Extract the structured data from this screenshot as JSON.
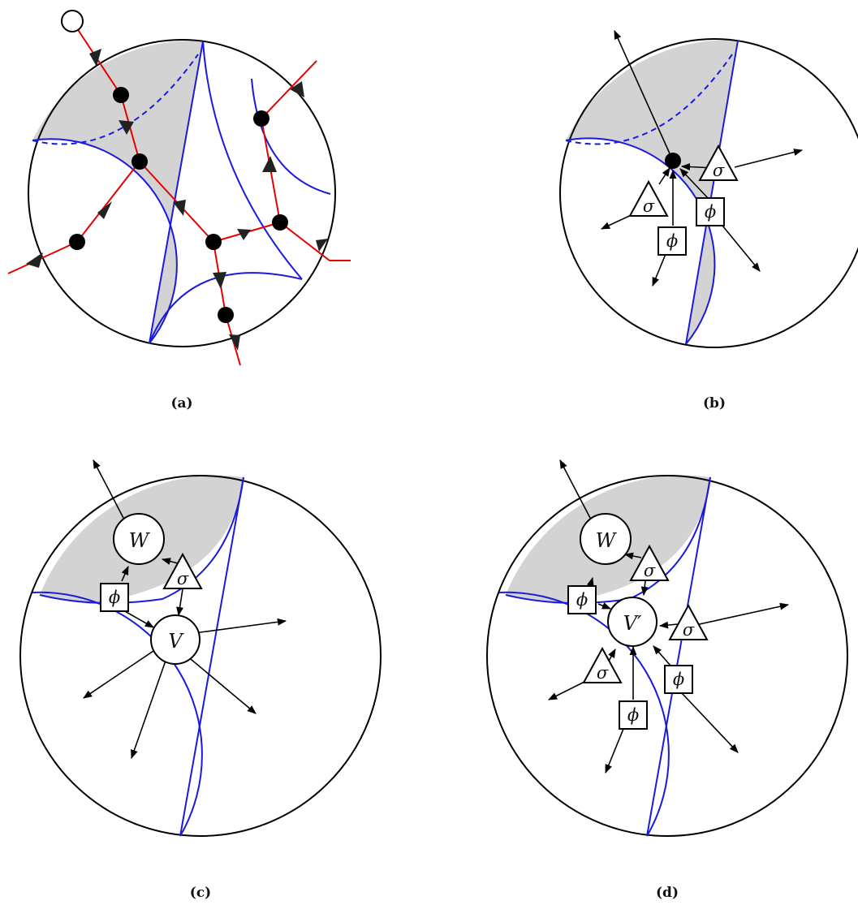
{
  "panels": [
    {
      "id": "a",
      "caption": "(a)"
    },
    {
      "id": "b",
      "caption": "(b)",
      "labels": {
        "sigma1": "σ",
        "sigma2": "σ",
        "phi1": "ϕ",
        "phi2": "ϕ"
      }
    },
    {
      "id": "c",
      "caption": "(c)",
      "labels": {
        "W": "W",
        "V": "V",
        "sigma": "σ",
        "phi": "ϕ"
      }
    },
    {
      "id": "d",
      "caption": "(d)",
      "labels": {
        "W": "W",
        "V": "V′",
        "sigma1": "σ",
        "sigma2": "σ",
        "sigma3": "σ",
        "phi1": "ϕ",
        "phi2": "ϕ",
        "phi3": "ϕ"
      }
    }
  ],
  "colors": {
    "circle": "#000000",
    "blue": "#1a1adc",
    "red": "#e60000",
    "shade": "#d3d3d3"
  }
}
